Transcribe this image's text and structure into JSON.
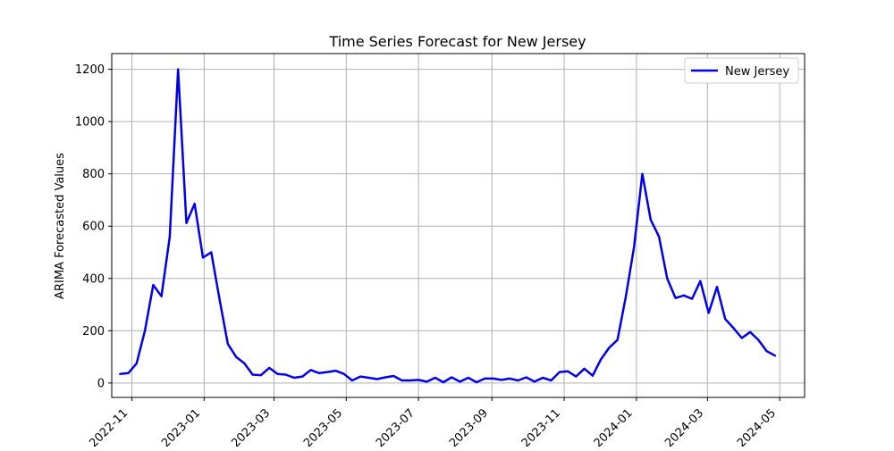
{
  "chart_data": {
    "type": "line",
    "title": "Time Series Forecast for New Jersey",
    "xlabel": "",
    "ylabel": "ARIMA Forecasted Values",
    "x_ticks": [
      "2022-11",
      "2023-01",
      "2023-03",
      "2023-05",
      "2023-07",
      "2023-09",
      "2023-11",
      "2024-01",
      "2024-03",
      "2024-05"
    ],
    "y_ticks": [
      0,
      200,
      400,
      600,
      800,
      1000,
      1200
    ],
    "xlim": [
      "2022-10-15",
      "2024-05-22"
    ],
    "ylim": [
      -55,
      1260
    ],
    "grid": true,
    "legend_position": "top-right",
    "series": [
      {
        "name": "New Jersey",
        "color": "#0000ee",
        "x": [
          "2022-10-22",
          "2022-10-29",
          "2022-11-05",
          "2022-11-12",
          "2022-11-19",
          "2022-11-26",
          "2022-12-03",
          "2022-12-10",
          "2022-12-17",
          "2022-12-24",
          "2022-12-31",
          "2023-01-07",
          "2023-01-14",
          "2023-01-21",
          "2023-01-28",
          "2023-02-04",
          "2023-02-11",
          "2023-02-18",
          "2023-02-25",
          "2023-03-04",
          "2023-03-11",
          "2023-03-18",
          "2023-03-25",
          "2023-04-01",
          "2023-04-08",
          "2023-04-15",
          "2023-04-22",
          "2023-04-29",
          "2023-05-06",
          "2023-05-13",
          "2023-05-20",
          "2023-05-27",
          "2023-06-03",
          "2023-06-10",
          "2023-06-17",
          "2023-06-24",
          "2023-07-01",
          "2023-07-08",
          "2023-07-15",
          "2023-07-22",
          "2023-07-29",
          "2023-08-05",
          "2023-08-12",
          "2023-08-19",
          "2023-08-26",
          "2023-09-02",
          "2023-09-09",
          "2023-09-16",
          "2023-09-23",
          "2023-09-30",
          "2023-10-07",
          "2023-10-14",
          "2023-10-21",
          "2023-10-28",
          "2023-11-04",
          "2023-11-11",
          "2023-11-18",
          "2023-11-25",
          "2023-12-02",
          "2023-12-09",
          "2023-12-16",
          "2023-12-23",
          "2023-12-30",
          "2024-01-06",
          "2024-01-13",
          "2024-01-20",
          "2024-01-27",
          "2024-02-03",
          "2024-02-10",
          "2024-02-17",
          "2024-02-24",
          "2024-03-02",
          "2024-03-09",
          "2024-03-16",
          "2024-03-23",
          "2024-03-30",
          "2024-04-06",
          "2024-04-13",
          "2024-04-20",
          "2024-04-27"
        ],
        "values": [
          35,
          38,
          75,
          200,
          375,
          332,
          560,
          1200,
          612,
          686,
          480,
          500,
          320,
          150,
          100,
          75,
          32,
          30,
          58,
          35,
          32,
          20,
          25,
          50,
          38,
          42,
          47,
          35,
          10,
          25,
          20,
          15,
          22,
          27,
          10,
          10,
          12,
          5,
          20,
          3,
          22,
          5,
          20,
          3,
          17,
          17,
          12,
          17,
          10,
          22,
          5,
          20,
          10,
          42,
          45,
          25,
          55,
          28,
          90,
          135,
          165,
          330,
          520,
          800,
          625,
          560,
          400,
          325,
          335,
          322,
          390,
          268,
          368,
          245,
          210,
          172,
          195,
          165,
          122,
          105
        ]
      }
    ]
  }
}
